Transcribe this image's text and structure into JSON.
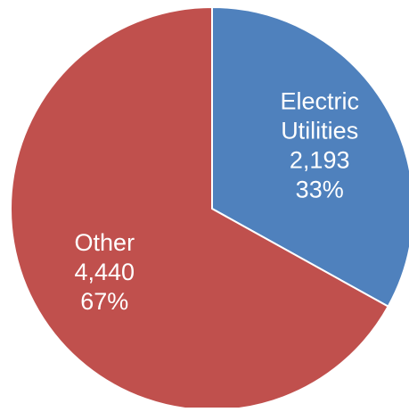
{
  "chart_data": {
    "type": "pie",
    "title": "",
    "slices": [
      {
        "label_lines": [
          "Electric",
          "Utilities"
        ],
        "value": 2193,
        "value_label": "2,193",
        "percent_label": "33%",
        "color": "#4f81bd"
      },
      {
        "label_lines": [
          "Other"
        ],
        "value": 4440,
        "value_label": "4,440",
        "percent_label": "67%",
        "color": "#c0504d"
      }
    ],
    "start_angle_deg": 0,
    "direction": "clockwise",
    "label_color": "#ffffff",
    "border_color": "#ffffff"
  }
}
